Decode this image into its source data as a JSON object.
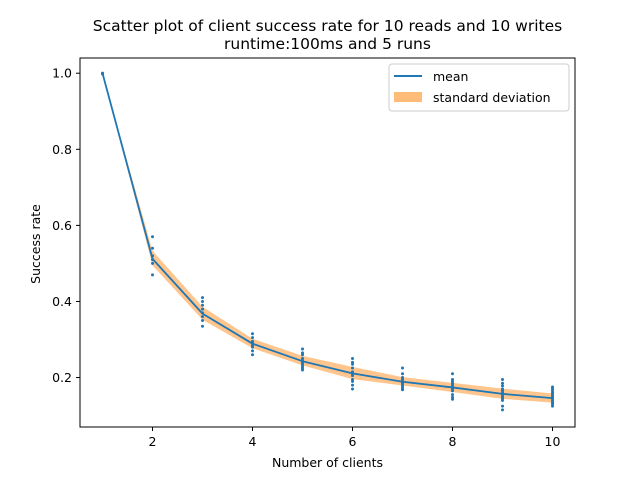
{
  "chart_data": {
    "type": "scatter",
    "title": "Scatter plot of client success rate for 10 reads and 10 writes",
    "subtitle": "runtime:100ms and 5 runs",
    "xlabel": "Number of clients",
    "ylabel": "Success rate",
    "xlim": [
      0.55,
      10.45
    ],
    "ylim": [
      0.07,
      1.04
    ],
    "xticks": [
      2,
      4,
      6,
      8,
      10
    ],
    "yticks": [
      0.2,
      0.4,
      0.6,
      0.8,
      1.0
    ],
    "grid": false,
    "legend": {
      "position": "top-right",
      "entries": [
        {
          "label": "mean",
          "color": "#1f77b4",
          "kind": "line"
        },
        {
          "label": "standard deviation",
          "color": "#ffbb78",
          "kind": "band"
        }
      ]
    },
    "series": [
      {
        "name": "mean",
        "color": "#1f77b4",
        "x": [
          1,
          2,
          3,
          4,
          5,
          6,
          7,
          8,
          9,
          10
        ],
        "values": [
          1.0,
          0.512,
          0.368,
          0.289,
          0.243,
          0.211,
          0.189,
          0.174,
          0.157,
          0.146
        ]
      },
      {
        "name": "standard deviation",
        "color": "#ffbb78",
        "x": [
          1,
          2,
          3,
          4,
          5,
          6,
          7,
          8,
          9,
          10
        ],
        "lower": [
          1.0,
          0.495,
          0.352,
          0.277,
          0.232,
          0.196,
          0.179,
          0.162,
          0.144,
          0.134
        ],
        "upper": [
          1.0,
          0.533,
          0.386,
          0.302,
          0.257,
          0.228,
          0.201,
          0.186,
          0.171,
          0.158
        ]
      }
    ],
    "points": {
      "color": "#1f77b4",
      "x": [
        1,
        1,
        1,
        2,
        2,
        2,
        2,
        2,
        2,
        3,
        3,
        3,
        3,
        3,
        3,
        3,
        3,
        4,
        4,
        4,
        4,
        4,
        4,
        4,
        4,
        5,
        5,
        5,
        5,
        5,
        5,
        5,
        5,
        5,
        5,
        6,
        6,
        6,
        6,
        6,
        6,
        6,
        6,
        6,
        6,
        6,
        7,
        7,
        7,
        7,
        7,
        7,
        7,
        7,
        7,
        7,
        8,
        8,
        8,
        8,
        8,
        8,
        8,
        8,
        8,
        8,
        8,
        9,
        9,
        9,
        9,
        9,
        9,
        9,
        9,
        9,
        9,
        9,
        9,
        10,
        10,
        10,
        10,
        10,
        10,
        10,
        10,
        10,
        10,
        10,
        10
      ],
      "y": [
        1.0,
        1.0,
        0.998,
        0.57,
        0.54,
        0.52,
        0.51,
        0.5,
        0.47,
        0.41,
        0.4,
        0.39,
        0.38,
        0.37,
        0.36,
        0.35,
        0.335,
        0.315,
        0.305,
        0.295,
        0.29,
        0.285,
        0.28,
        0.27,
        0.26,
        0.275,
        0.265,
        0.26,
        0.25,
        0.245,
        0.24,
        0.235,
        0.23,
        0.225,
        0.22,
        0.25,
        0.24,
        0.235,
        0.225,
        0.215,
        0.21,
        0.205,
        0.195,
        0.19,
        0.18,
        0.17,
        0.225,
        0.21,
        0.2,
        0.195,
        0.19,
        0.185,
        0.18,
        0.175,
        0.17,
        0.168,
        0.21,
        0.195,
        0.19,
        0.185,
        0.18,
        0.175,
        0.17,
        0.165,
        0.155,
        0.148,
        0.143,
        0.195,
        0.185,
        0.178,
        0.17,
        0.165,
        0.16,
        0.155,
        0.15,
        0.145,
        0.14,
        0.125,
        0.115,
        0.175,
        0.17,
        0.165,
        0.16,
        0.155,
        0.15,
        0.148,
        0.145,
        0.14,
        0.135,
        0.13,
        0.125
      ]
    }
  }
}
